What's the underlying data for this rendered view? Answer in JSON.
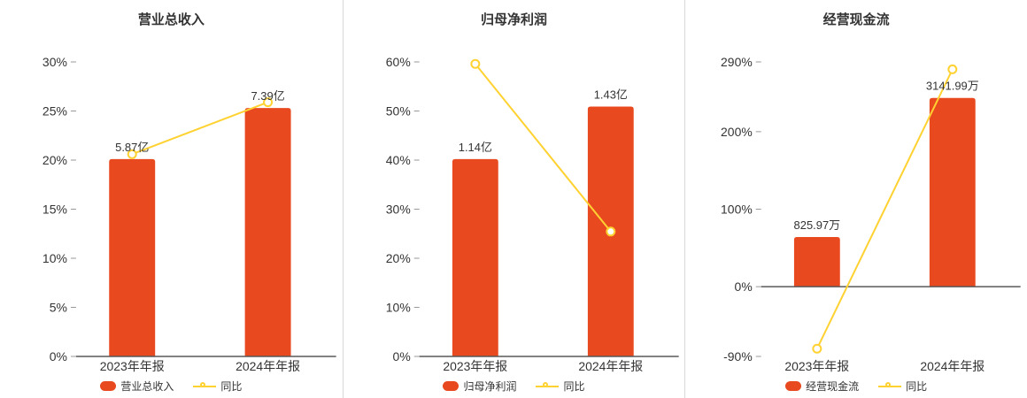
{
  "colors": {
    "bar": "#e8491f",
    "line": "#ffd232",
    "axis": "#595959",
    "tick": "#999999",
    "text": "#333333",
    "divider": "#d9d9d9",
    "background": "#ffffff"
  },
  "chart_data": [
    {
      "type": "bar+line",
      "title": "营业总收入",
      "categories": [
        "2023年年报",
        "2024年年报"
      ],
      "ylim": [
        0,
        30
      ],
      "yticks": [
        0,
        5,
        10,
        15,
        20,
        25,
        30
      ],
      "ytick_labels": [
        "0%",
        "5%",
        "10%",
        "15%",
        "20%",
        "25%",
        "30%"
      ],
      "bar_series": {
        "name": "营业总收入",
        "labels": [
          "5.87亿",
          "7.39亿"
        ],
        "display_pct": [
          20.1,
          25.3
        ]
      },
      "line_series": {
        "name": "同比",
        "values_pct": [
          20.6,
          25.89
        ]
      },
      "grid": false,
      "legend_position": "bottom"
    },
    {
      "type": "bar+line",
      "title": "归母净利润",
      "categories": [
        "2023年年报",
        "2024年年报"
      ],
      "ylim": [
        0,
        60
      ],
      "yticks": [
        0,
        10,
        20,
        30,
        40,
        50,
        60
      ],
      "ytick_labels": [
        "0%",
        "10%",
        "20%",
        "30%",
        "40%",
        "50%",
        "60%"
      ],
      "bar_series": {
        "name": "归母净利润",
        "labels": [
          "1.14亿",
          "1.43亿"
        ],
        "display_pct": [
          40.2,
          50.9
        ]
      },
      "line_series": {
        "name": "同比",
        "values_pct": [
          59.6,
          25.44
        ]
      },
      "grid": false,
      "legend_position": "bottom"
    },
    {
      "type": "bar+line",
      "title": "经营现金流",
      "categories": [
        "2023年年报",
        "2024年年报"
      ],
      "ylim": [
        -90,
        290
      ],
      "yticks": [
        -90,
        0,
        100,
        200,
        290
      ],
      "ytick_labels": [
        "-90%",
        "0%",
        "100%",
        "200%",
        "290%"
      ],
      "bar_series": {
        "name": "经营现金流",
        "labels": [
          "825.97万",
          "3141.99万"
        ],
        "display_pct": [
          64,
          243.5
        ]
      },
      "line_series": {
        "name": "同比",
        "values_pct": [
          -80,
          280.4
        ]
      },
      "grid": false,
      "legend_position": "bottom"
    }
  ]
}
